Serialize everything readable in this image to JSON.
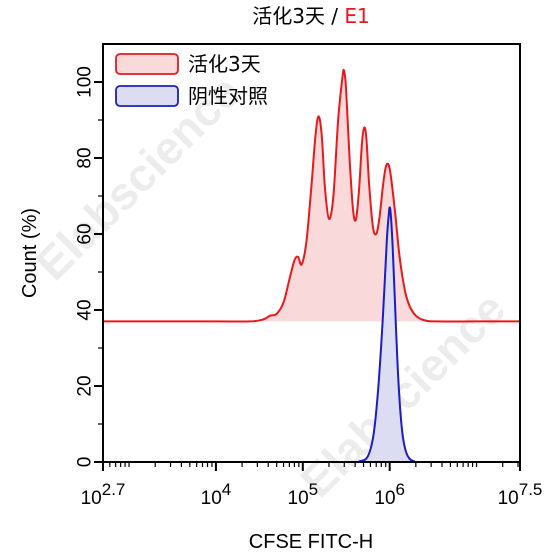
{
  "chart_data": {
    "type": "area",
    "title": {
      "main": "活化3天",
      "separator": " / ",
      "sample": "E1"
    },
    "title_colors": {
      "main": "#000000",
      "sample": "#e8191d"
    },
    "xlabel": "CFSE FITC-H",
    "ylabel": "Count (%)",
    "x_scale": "log",
    "xlim": [
      501.19,
      31622777
    ],
    "ylim": [
      0,
      110
    ],
    "x_ticks": [
      {
        "value": 501.19,
        "base": "10",
        "exp": "2.7"
      },
      {
        "value": 10000,
        "base": "10",
        "exp": "4"
      },
      {
        "value": 100000,
        "base": "10",
        "exp": "5"
      },
      {
        "value": 1000000,
        "base": "10",
        "exp": "6"
      },
      {
        "value": 31622777,
        "base": "10",
        "exp": "7.5"
      }
    ],
    "y_ticks": [
      0,
      20,
      40,
      60,
      80,
      100
    ],
    "watermark": "Elabscience",
    "legend_position": "top-left",
    "series": [
      {
        "name": "活化3天",
        "line_color": "#e8191d",
        "fill_color": "#f9d9d9",
        "baseline": 37,
        "points": [
          [
            501.19,
            37
          ],
          [
            3000,
            37
          ],
          [
            10000,
            37
          ],
          [
            25000,
            37
          ],
          [
            35000,
            37.5
          ],
          [
            42000,
            38.5
          ],
          [
            50000,
            39
          ],
          [
            60000,
            42
          ],
          [
            70000,
            48
          ],
          [
            80000,
            53
          ],
          [
            88000,
            54
          ],
          [
            97000,
            52
          ],
          [
            110000,
            58
          ],
          [
            125000,
            72
          ],
          [
            140000,
            86
          ],
          [
            152000,
            91
          ],
          [
            165000,
            86
          ],
          [
            180000,
            72
          ],
          [
            200000,
            64
          ],
          [
            225000,
            70
          ],
          [
            255000,
            90
          ],
          [
            285000,
            101
          ],
          [
            298000,
            103
          ],
          [
            315000,
            98
          ],
          [
            345000,
            80
          ],
          [
            380000,
            66
          ],
          [
            410000,
            64
          ],
          [
            445000,
            72
          ],
          [
            480000,
            84
          ],
          [
            510000,
            88
          ],
          [
            540000,
            85
          ],
          [
            580000,
            73
          ],
          [
            640000,
            62
          ],
          [
            700000,
            60
          ],
          [
            760000,
            64
          ],
          [
            830000,
            72
          ],
          [
            890000,
            77
          ],
          [
            950000,
            78.5
          ],
          [
            1020000,
            76
          ],
          [
            1150000,
            66
          ],
          [
            1300000,
            54
          ],
          [
            1500000,
            45
          ],
          [
            1700000,
            41
          ],
          [
            2000000,
            38.5
          ],
          [
            2500000,
            37.3
          ],
          [
            3500000,
            37
          ],
          [
            10000000,
            37
          ],
          [
            31622777,
            37
          ]
        ]
      },
      {
        "name": "阴性对照",
        "line_color": "#1c1cc7",
        "fill_color": "#dcdcf2",
        "baseline": 0,
        "points": [
          [
            501.19,
            0
          ],
          [
            300000,
            0
          ],
          [
            450000,
            0.2
          ],
          [
            560000,
            1.5
          ],
          [
            650000,
            7
          ],
          [
            730000,
            18
          ],
          [
            810000,
            33
          ],
          [
            880000,
            48
          ],
          [
            930000,
            59
          ],
          [
            975000,
            65
          ],
          [
            1000000,
            67
          ],
          [
            1030000,
            65
          ],
          [
            1080000,
            57
          ],
          [
            1150000,
            42
          ],
          [
            1230000,
            26
          ],
          [
            1320000,
            14
          ],
          [
            1420000,
            6.5
          ],
          [
            1550000,
            2.5
          ],
          [
            1700000,
            0.8
          ],
          [
            1900000,
            0.2
          ],
          [
            2200000,
            0
          ],
          [
            31622777,
            0
          ]
        ]
      }
    ]
  }
}
